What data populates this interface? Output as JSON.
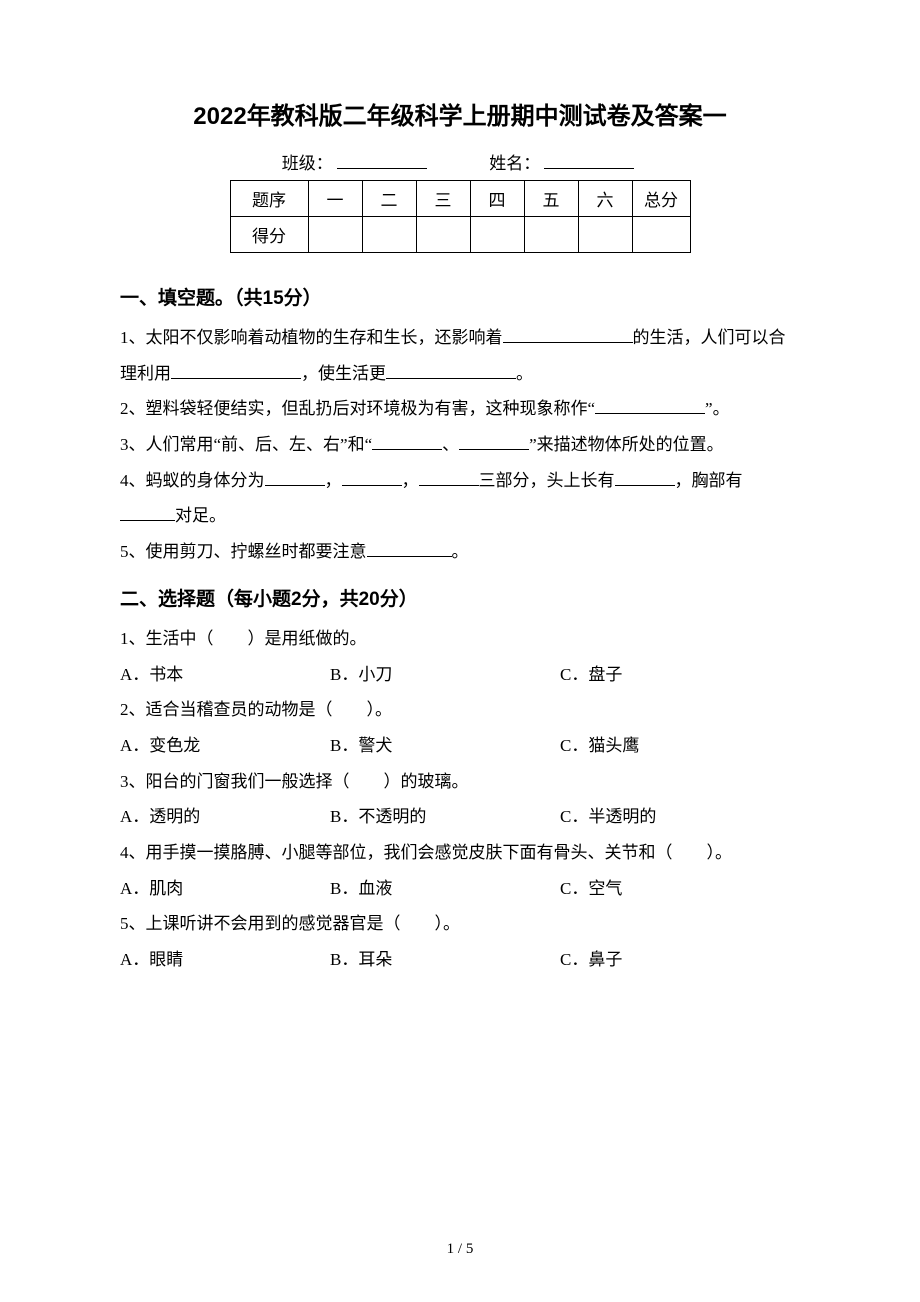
{
  "doc": {
    "title": "2022年教科版二年级科学上册期中测试卷及答案一",
    "class_label": "班级：",
    "name_label": "姓名：",
    "score_table": {
      "row1_label": "题序",
      "cols": [
        "一",
        "二",
        "三",
        "四",
        "五",
        "六"
      ],
      "total_label": "总分",
      "row2_label": "得分"
    },
    "section1": {
      "heading": "一、填空题。（共15分）",
      "q1_a": "1、太阳不仅影响着动植物的生存和生长，还影响着",
      "q1_b": "的生活，人们可以合理利用",
      "q1_c": "，使生活更",
      "q1_d": "。",
      "q2_a": "2、塑料袋轻便结实，但乱扔后对环境极为有害，这种现象称作“",
      "q2_b": "”。",
      "q3_a": "3、人们常用“前、后、左、右”和“",
      "q3_b": "、",
      "q3_c": "”来描述物体所处的位置。",
      "q4_a": "4、蚂蚁的身体分为",
      "q4_b": "，",
      "q4_c": "，",
      "q4_d": "三部分，头上长有",
      "q4_e": "，胸部有",
      "q4_f": "对足。",
      "q5_a": "5、使用剪刀、拧螺丝时都要注意",
      "q5_b": "。"
    },
    "section2": {
      "heading": "二、选择题（每小题2分，共20分）",
      "q1": {
        "stem": "1、生活中（　　）是用纸做的。",
        "a": "A．书本",
        "b": "B．小刀",
        "c": "C．盘子"
      },
      "q2": {
        "stem": "2、适合当稽查员的动物是（　　）。",
        "a": "A．变色龙",
        "b": "B．警犬",
        "c": "C．猫头鹰"
      },
      "q3": {
        "stem": "3、阳台的门窗我们一般选择（　　）的玻璃。",
        "a": "A．透明的",
        "b": "B．不透明的",
        "c": "C．半透明的"
      },
      "q4": {
        "stem": "4、用手摸一摸胳膊、小腿等部位，我们会感觉皮肤下面有骨头、关节和（　　）。",
        "a": "A．肌肉",
        "b": "B．血液",
        "c": "C．空气"
      },
      "q5": {
        "stem": "5、上课听讲不会用到的感觉器官是（　　）。",
        "a": "A．眼睛",
        "b": "B．耳朵",
        "c": "C．鼻子"
      }
    },
    "pagenum": "1 / 5"
  }
}
